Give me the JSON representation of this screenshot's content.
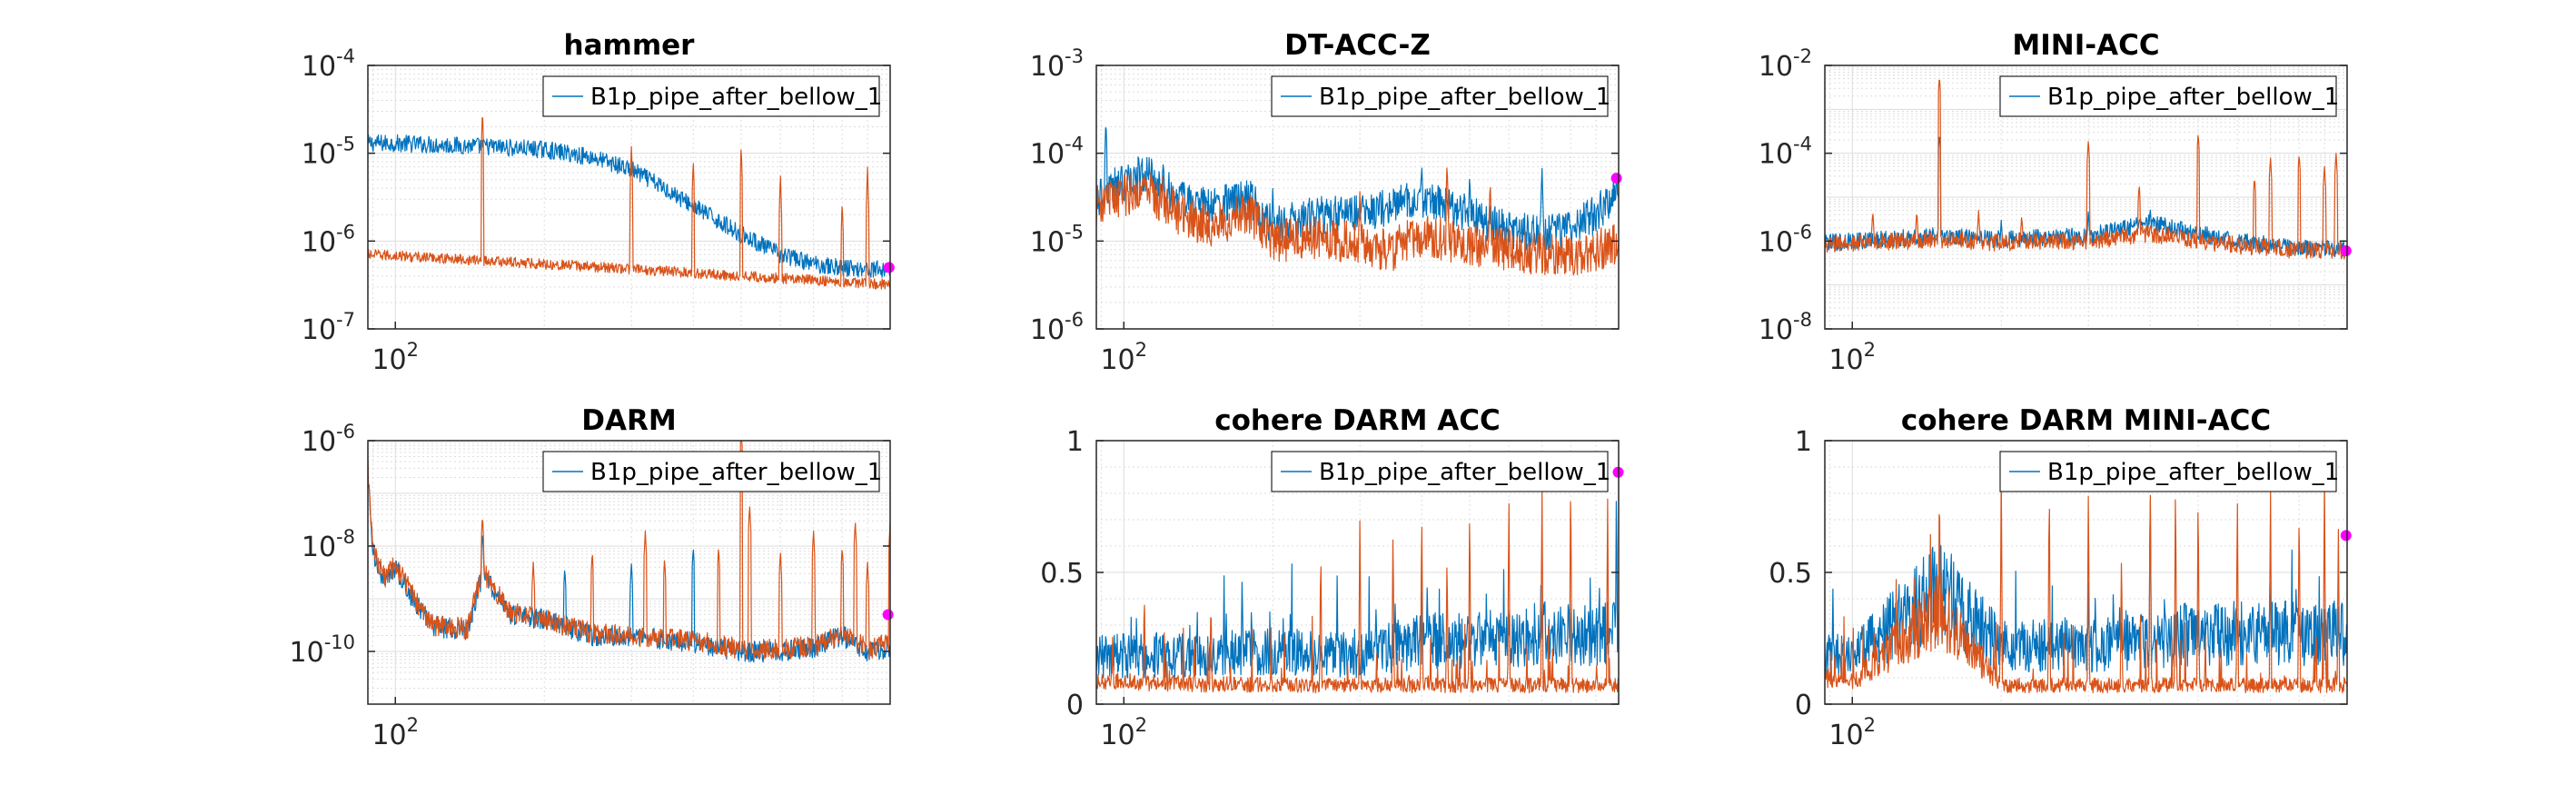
{
  "figure": {
    "colors": {
      "series1": "#0072BD",
      "series2": "#D95319",
      "marker": "#FF00FF",
      "grid": "#dddddd",
      "axis": "#262626"
    }
  },
  "chart_data": [
    {
      "type": "line",
      "title": "hammer",
      "xscale": "log",
      "yscale": "log",
      "xlim": [
        88,
        1000
      ],
      "ylim": [
        1e-07,
        0.0001
      ],
      "yticks": [
        1e-07,
        1e-06,
        1e-05,
        0.0001
      ],
      "ytick_labels": [
        {
          "base": "10",
          "exp": "-7"
        },
        {
          "base": "10",
          "exp": "-6"
        },
        {
          "base": "10",
          "exp": "-5"
        },
        {
          "base": "10",
          "exp": "-4"
        }
      ],
      "xtick_labels": [
        {
          "value": 100,
          "base": "10",
          "exp": "2"
        }
      ],
      "grid": true,
      "legend": {
        "location": "top-right",
        "entries": [
          "B1p_pipe_after_bellow_1"
        ]
      },
      "series": [
        {
          "name": "B1p_pipe_after_bellow_1",
          "color": "#0072BD",
          "x": [
            88,
            100,
            120,
            150,
            200,
            250,
            300,
            350,
            400,
            500,
            600,
            700,
            800,
            900,
            1000
          ],
          "y": [
            1.3e-05,
            1.3e-05,
            1.25e-05,
            1.2e-05,
            1.1e-05,
            9e-06,
            6.5e-06,
            4e-06,
            2.5e-06,
            1.2e-06,
            7e-07,
            5.5e-07,
            5e-07,
            4.8e-07,
            4.7e-07
          ],
          "noise": 0.1,
          "peaks": []
        },
        {
          "color": "#D95319",
          "x": [
            88,
            100,
            150,
            200,
            300,
            500,
            700,
            1000
          ],
          "y": [
            7e-07,
            6.8e-07,
            6e-07,
            5.5e-07,
            4.8e-07,
            4e-07,
            3.6e-07,
            3.2e-07
          ],
          "noise": 0.06,
          "peaks": [
            [
              120,
              7e-07
            ],
            [
              150,
              3.3e-05
            ],
            [
              300,
              1.3e-05
            ],
            [
              400,
              9e-06
            ],
            [
              500,
              1.3e-05
            ],
            [
              600,
              6e-06
            ],
            [
              800,
              3e-06
            ],
            [
              900,
              7e-06
            ]
          ]
        }
      ],
      "marker": {
        "x": 995,
        "y": 5e-07
      }
    },
    {
      "type": "line",
      "title": "DT-ACC-Z",
      "xscale": "log",
      "yscale": "log",
      "xlim": [
        88,
        1000
      ],
      "ylim": [
        1e-06,
        0.001
      ],
      "yticks": [
        1e-06,
        1e-05,
        0.0001,
        0.001
      ],
      "ytick_labels": [
        {
          "base": "10",
          "exp": "-6"
        },
        {
          "base": "10",
          "exp": "-5"
        },
        {
          "base": "10",
          "exp": "-4"
        },
        {
          "base": "10",
          "exp": "-3"
        }
      ],
      "xtick_labels": [
        {
          "value": 100,
          "base": "10",
          "exp": "2"
        }
      ],
      "grid": true,
      "legend": {
        "location": "top-right",
        "entries": [
          "B1p_pipe_after_bellow_1"
        ]
      },
      "series": [
        {
          "name": "B1p_pipe_after_bellow_1",
          "color": "#0072BD",
          "x": [
            88,
            95,
            110,
            130,
            150,
            180,
            200,
            250,
            300,
            350,
            400,
            500,
            600,
            700,
            800,
            900,
            1000
          ],
          "y": [
            3e-05,
            4e-05,
            6e-05,
            3e-05,
            2.5e-05,
            3e-05,
            1.5e-05,
            2e-05,
            2e-05,
            2.5e-05,
            3e-05,
            2e-05,
            1.3e-05,
            1.2e-05,
            1.4e-05,
            2e-05,
            4e-05
          ],
          "noise": 0.22,
          "peaks": [
            [
              92,
              0.00025
            ],
            [
              120,
              8e-05
            ],
            [
              200,
              4e-05
            ],
            [
              400,
              8e-05
            ],
            [
              500,
              6e-05
            ],
            [
              700,
              7e-05
            ]
          ]
        },
        {
          "color": "#D95319",
          "x": [
            88,
            95,
            110,
            130,
            150,
            180,
            200,
            250,
            300,
            350,
            400,
            500,
            600,
            700,
            800,
            900,
            1000
          ],
          "y": [
            2.5e-05,
            3e-05,
            4e-05,
            2e-05,
            1.5e-05,
            2e-05,
            1e-05,
            1.1e-05,
            9e-06,
            8e-06,
            1.2e-05,
            9e-06,
            8e-06,
            7e-06,
            7e-06,
            8e-06,
            9e-06
          ],
          "noise": 0.25,
          "peaks": [
            [
              120,
              6e-05
            ],
            [
              300,
              4e-05
            ],
            [
              450,
              8e-05
            ],
            [
              550,
              5e-05
            ]
          ]
        }
      ],
      "marker": {
        "x": 990,
        "y": 5.2e-05
      }
    },
    {
      "type": "line",
      "title": "MINI-ACC",
      "xscale": "log",
      "yscale": "log",
      "xlim": [
        88,
        1000
      ],
      "ylim": [
        1e-08,
        0.01
      ],
      "yticks": [
        1e-08,
        1e-06,
        0.0001,
        0.01
      ],
      "ytick_labels": [
        {
          "base": "10",
          "exp": "-8"
        },
        {
          "base": "10",
          "exp": "-6"
        },
        {
          "base": "10",
          "exp": "-4"
        },
        {
          "base": "10",
          "exp": "-2"
        }
      ],
      "xtick_labels": [
        {
          "value": 100,
          "base": "10",
          "exp": "2"
        }
      ],
      "grid": true,
      "legend": {
        "location": "top-right",
        "entries": [
          "B1p_pipe_after_bellow_1"
        ]
      },
      "series": [
        {
          "name": "B1p_pipe_after_bellow_1",
          "color": "#0072BD",
          "x": [
            88,
            100,
            130,
            150,
            200,
            250,
            300,
            400,
            500,
            600,
            700,
            800,
            900,
            1000
          ],
          "y": [
            9e-07,
            1e-06,
            1.2e-06,
            1.3e-06,
            1.1e-06,
            1.2e-06,
            1.3e-06,
            2.5e-06,
            1.5e-06,
            1e-06,
            8e-07,
            7e-07,
            7e-07,
            7e-07
          ],
          "noise": 0.2,
          "peaks": [
            [
              150,
              0.0003
            ],
            [
              200,
              3e-06
            ],
            [
              300,
              5e-06
            ],
            [
              400,
              6e-06
            ],
            [
              460,
              2e-06
            ]
          ]
        },
        {
          "color": "#D95319",
          "x": [
            88,
            100,
            130,
            150,
            200,
            250,
            300,
            400,
            500,
            600,
            700,
            800,
            900,
            1000
          ],
          "y": [
            8e-07,
            9e-07,
            1e-06,
            1.1e-06,
            9e-07,
            1e-06,
            1e-06,
            1.5e-06,
            1e-06,
            8e-07,
            7e-07,
            6e-07,
            6e-07,
            6e-07
          ],
          "noise": 0.2,
          "peaks": [
            [
              110,
              5e-06
            ],
            [
              135,
              5e-06
            ],
            [
              150,
              0.006
            ],
            [
              180,
              5e-06
            ],
            [
              220,
              4e-06
            ],
            [
              300,
              0.0002
            ],
            [
              380,
              2e-05
            ],
            [
              500,
              0.0003
            ],
            [
              650,
              3e-05
            ],
            [
              700,
              8e-05
            ],
            [
              800,
              0.0001
            ],
            [
              900,
              5e-05
            ],
            [
              950,
              0.0001
            ]
          ]
        }
      ],
      "marker": {
        "x": 995,
        "y": 6e-07
      }
    },
    {
      "type": "line",
      "title": "DARM",
      "xscale": "log",
      "yscale": "log",
      "xlim": [
        88,
        1000
      ],
      "ylim": [
        1e-11,
        1e-06
      ],
      "yticks": [
        1e-10,
        1e-08,
        1e-06
      ],
      "ytick_labels": [
        {
          "base": "10",
          "exp": "-10"
        },
        {
          "base": "10",
          "exp": "-8"
        },
        {
          "base": "10",
          "exp": "-6"
        }
      ],
      "xtick_labels": [
        {
          "value": 100,
          "base": "10",
          "exp": "2"
        }
      ],
      "grid": true,
      "legend": {
        "location": "top-right",
        "entries": [
          "B1p_pipe_after_bellow_1"
        ]
      },
      "series": [
        {
          "name": "B1p_pipe_after_bellow_1",
          "color": "#0072BD",
          "x": [
            88,
            90,
            95,
            100,
            110,
            120,
            140,
            150,
            170,
            200,
            250,
            300,
            400,
            500,
            600,
            700,
            800,
            900,
            1000
          ],
          "y": [
            3e-07,
            8e-09,
            2e-09,
            4e-09,
            8e-10,
            3e-10,
            2.5e-10,
            3e-09,
            5e-10,
            4e-10,
            2e-10,
            2e-10,
            1.5e-10,
            1e-10,
            1e-10,
            1.2e-10,
            2e-10,
            1e-10,
            1.2e-10
          ],
          "noise": 0.2,
          "peaks": [
            [
              150,
              2e-08
            ],
            [
              220,
              4e-09
            ],
            [
              300,
              5e-09
            ],
            [
              400,
              1e-08
            ]
          ]
        },
        {
          "color": "#D95319",
          "x": [
            88,
            90,
            95,
            100,
            110,
            120,
            140,
            150,
            170,
            200,
            250,
            300,
            400,
            500,
            600,
            700,
            800,
            900,
            1000
          ],
          "y": [
            3.5e-07,
            9e-09,
            2.5e-09,
            4.5e-09,
            9e-10,
            3e-10,
            2.8e-10,
            3.5e-09,
            5.5e-10,
            4e-10,
            2.2e-10,
            2e-10,
            1.6e-10,
            1.1e-10,
            1.1e-10,
            1.3e-10,
            2.2e-10,
            1.1e-10,
            1.5e-10
          ],
          "noise": 0.2,
          "peaks": [
            [
              150,
              4e-08
            ],
            [
              190,
              5e-09
            ],
            [
              250,
              8e-09
            ],
            [
              320,
              2e-08
            ],
            [
              350,
              6e-09
            ],
            [
              450,
              1e-08
            ],
            [
              500,
              2e-06
            ],
            [
              520,
              6e-08
            ],
            [
              600,
              8e-09
            ],
            [
              700,
              2e-08
            ],
            [
              800,
              1e-08
            ],
            [
              850,
              3e-08
            ],
            [
              900,
              5e-09
            ],
            [
              1000,
              3e-08
            ]
          ]
        }
      ],
      "marker": {
        "x": 990,
        "y": 5e-10
      }
    },
    {
      "type": "line",
      "title": "cohere DARM ACC",
      "xscale": "log",
      "yscale": "linear",
      "xlim": [
        88,
        1000
      ],
      "ylim": [
        0,
        1
      ],
      "yticks": [
        0,
        0.5,
        1
      ],
      "ytick_labels": [
        {
          "text": "0"
        },
        {
          "text": "0.5"
        },
        {
          "text": "1"
        }
      ],
      "xtick_labels": [
        {
          "value": 100,
          "base": "10",
          "exp": "2"
        }
      ],
      "grid": true,
      "legend": {
        "location": "top-right",
        "entries": [
          "B1p_pipe_after_bellow_1"
        ]
      },
      "series": [
        {
          "name": "B1p_pipe_after_bellow_1",
          "color": "#0072BD",
          "x": [
            88,
            100,
            150,
            200,
            300,
            400,
            500,
            600,
            700,
            800,
            900,
            1000
          ],
          "y": [
            0.15,
            0.15,
            0.15,
            0.17,
            0.15,
            0.2,
            0.2,
            0.2,
            0.22,
            0.22,
            0.22,
            0.22
          ],
          "noise": 0.7,
          "peaks": [
            [
              990,
              0.88
            ]
          ]
        },
        {
          "color": "#D95319",
          "x": [
            88,
            100,
            200,
            400,
            600,
            800,
            1000
          ],
          "y": [
            0.08,
            0.07,
            0.06,
            0.06,
            0.06,
            0.06,
            0.06
          ],
          "noise": 0.6,
          "peaks": [
            [
              95,
              0.3
            ],
            [
              110,
              0.45
            ],
            [
              150,
              0.42
            ],
            [
              250,
              0.62
            ],
            [
              300,
              0.75
            ],
            [
              350,
              0.7
            ],
            [
              400,
              0.78
            ],
            [
              450,
              0.6
            ],
            [
              500,
              0.8
            ],
            [
              600,
              0.82
            ],
            [
              700,
              0.85
            ],
            [
              800,
              0.92
            ],
            [
              950,
              0.78
            ]
          ]
        }
      ],
      "marker": {
        "x": 998,
        "y": 0.88
      }
    },
    {
      "type": "line",
      "title": "cohere DARM MINI-ACC",
      "xscale": "log",
      "yscale": "linear",
      "xlim": [
        88,
        1000
      ],
      "ylim": [
        0,
        1
      ],
      "yticks": [
        0,
        0.5,
        1
      ],
      "ytick_labels": [
        {
          "text": "0"
        },
        {
          "text": "0.5"
        },
        {
          "text": "1"
        }
      ],
      "xtick_labels": [
        {
          "value": 100,
          "base": "10",
          "exp": "2"
        }
      ],
      "grid": true,
      "legend": {
        "location": "top-right",
        "entries": [
          "B1p_pipe_after_bellow_1"
        ]
      },
      "series": [
        {
          "name": "B1p_pipe_after_bellow_1",
          "color": "#0072BD",
          "x": [
            88,
            100,
            150,
            200,
            300,
            400,
            500,
            600,
            700,
            800,
            900,
            1000
          ],
          "y": [
            0.15,
            0.15,
            0.35,
            0.18,
            0.18,
            0.2,
            0.22,
            0.22,
            0.22,
            0.22,
            0.22,
            0.22
          ],
          "noise": 0.7,
          "peaks": [
            [
              150,
              0.55
            ],
            [
              300,
              0.5
            ],
            [
              400,
              0.9
            ]
          ]
        },
        {
          "color": "#D95319",
          "x": [
            88,
            100,
            150,
            200,
            400,
            600,
            800,
            1000
          ],
          "y": [
            0.08,
            0.07,
            0.3,
            0.06,
            0.06,
            0.06,
            0.06,
            0.06
          ],
          "noise": 0.6,
          "peaks": [
            [
              150,
              0.92
            ],
            [
              200,
              0.9
            ],
            [
              250,
              0.88
            ],
            [
              300,
              0.85
            ],
            [
              350,
              0.6
            ],
            [
              400,
              0.92
            ],
            [
              450,
              0.9
            ],
            [
              500,
              0.85
            ],
            [
              600,
              0.82
            ],
            [
              700,
              0.84
            ],
            [
              800,
              0.8
            ],
            [
              900,
              0.88
            ],
            [
              960,
              0.7
            ]
          ]
        }
      ],
      "marker": {
        "x": 995,
        "y": 0.64
      }
    }
  ]
}
